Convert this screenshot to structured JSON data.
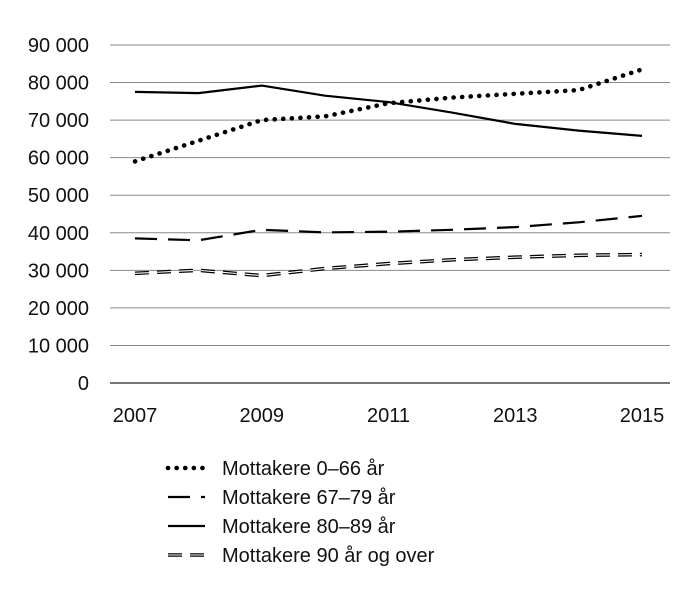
{
  "chart_data": {
    "type": "line",
    "title": "",
    "xlabel": "",
    "ylabel": "",
    "x": [
      2007,
      2008,
      2009,
      2010,
      2011,
      2012,
      2013,
      2014,
      2015
    ],
    "xticks": [
      "2007",
      "2009",
      "2011",
      "2013",
      "2015"
    ],
    "yticks": [
      "0",
      "10 000",
      "20 000",
      "30 000",
      "40 000",
      "50 000",
      "60 000",
      "70 000",
      "80 000",
      "90 000"
    ],
    "ylim": [
      0,
      90000
    ],
    "grid": "horizontal",
    "legend_position": "bottom",
    "series": [
      {
        "name": "Mottakere 0–66 år",
        "style": "dotted",
        "values": [
          59000,
          64500,
          70000,
          71000,
          74500,
          76000,
          77000,
          78000,
          83500
        ]
      },
      {
        "name": "Mottakere 67–79 år",
        "style": "dashed",
        "values": [
          38500,
          38000,
          40800,
          40100,
          40300,
          40800,
          41500,
          42800,
          44500
        ]
      },
      {
        "name": "Mottakere 80–89 år",
        "style": "solid",
        "values": [
          77500,
          77200,
          79200,
          76500,
          74800,
          72000,
          69000,
          67200,
          65800
        ]
      },
      {
        "name": "Mottakere 90 år og over",
        "style": "double-dashed",
        "values": [
          29200,
          30000,
          28600,
          30500,
          31800,
          32800,
          33500,
          34000,
          34200
        ]
      }
    ]
  }
}
